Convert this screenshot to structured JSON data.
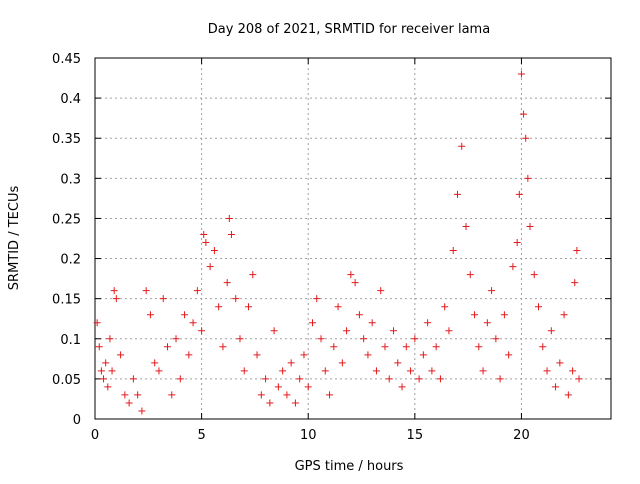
{
  "chart_data": {
    "type": "scatter",
    "title": "Day 208 of 2021, SRMTID for receiver lama",
    "xlabel": "GPS time / hours",
    "ylabel": "SRMTID / TECUs",
    "xlim": [
      0,
      24.2
    ],
    "ylim": [
      0,
      0.45
    ],
    "x_ticks": [
      0,
      5,
      10,
      15,
      20
    ],
    "y_ticks": [
      0,
      0.05,
      0.1,
      0.15,
      0.2,
      0.25,
      0.3,
      0.35,
      0.4,
      0.45
    ],
    "x_tick_labels": [
      "0",
      "5",
      "10",
      "15",
      "20"
    ],
    "y_tick_labels": [
      "0",
      "0.05",
      "0.1",
      "0.15",
      "0.2",
      "0.25",
      "0.3",
      "0.35",
      "0.4",
      "0.45"
    ],
    "grid": true,
    "marker": "+",
    "series": [
      {
        "name": "SRMTID",
        "color": "#e41a1c",
        "points": [
          [
            0.1,
            0.12
          ],
          [
            0.2,
            0.09
          ],
          [
            0.3,
            0.06
          ],
          [
            0.4,
            0.05
          ],
          [
            0.5,
            0.07
          ],
          [
            0.6,
            0.04
          ],
          [
            0.7,
            0.1
          ],
          [
            0.8,
            0.06
          ],
          [
            0.9,
            0.16
          ],
          [
            1.0,
            0.15
          ],
          [
            1.2,
            0.08
          ],
          [
            1.4,
            0.03
          ],
          [
            1.6,
            0.02
          ],
          [
            1.8,
            0.05
          ],
          [
            2.0,
            0.03
          ],
          [
            2.2,
            0.01
          ],
          [
            2.4,
            0.16
          ],
          [
            2.6,
            0.13
          ],
          [
            2.8,
            0.07
          ],
          [
            3.0,
            0.06
          ],
          [
            3.2,
            0.15
          ],
          [
            3.4,
            0.09
          ],
          [
            3.6,
            0.03
          ],
          [
            3.8,
            0.1
          ],
          [
            4.0,
            0.05
          ],
          [
            4.2,
            0.13
          ],
          [
            4.4,
            0.08
          ],
          [
            4.6,
            0.12
          ],
          [
            4.8,
            0.16
          ],
          [
            5.0,
            0.11
          ],
          [
            5.1,
            0.23
          ],
          [
            5.2,
            0.22
          ],
          [
            5.4,
            0.19
          ],
          [
            5.6,
            0.21
          ],
          [
            5.8,
            0.14
          ],
          [
            6.0,
            0.09
          ],
          [
            6.2,
            0.17
          ],
          [
            6.3,
            0.25
          ],
          [
            6.4,
            0.23
          ],
          [
            6.6,
            0.15
          ],
          [
            6.8,
            0.1
          ],
          [
            7.0,
            0.06
          ],
          [
            7.2,
            0.14
          ],
          [
            7.4,
            0.18
          ],
          [
            7.6,
            0.08
          ],
          [
            7.8,
            0.03
          ],
          [
            8.0,
            0.05
          ],
          [
            8.2,
            0.02
          ],
          [
            8.4,
            0.11
          ],
          [
            8.6,
            0.04
          ],
          [
            8.8,
            0.06
          ],
          [
            9.0,
            0.03
          ],
          [
            9.2,
            0.07
          ],
          [
            9.4,
            0.02
          ],
          [
            9.6,
            0.05
          ],
          [
            9.8,
            0.08
          ],
          [
            10.0,
            0.04
          ],
          [
            10.2,
            0.12
          ],
          [
            10.4,
            0.15
          ],
          [
            10.6,
            0.1
          ],
          [
            10.8,
            0.06
          ],
          [
            11.0,
            0.03
          ],
          [
            11.2,
            0.09
          ],
          [
            11.4,
            0.14
          ],
          [
            11.6,
            0.07
          ],
          [
            11.8,
            0.11
          ],
          [
            12.0,
            0.18
          ],
          [
            12.2,
            0.17
          ],
          [
            12.4,
            0.13
          ],
          [
            12.6,
            0.1
          ],
          [
            12.8,
            0.08
          ],
          [
            13.0,
            0.12
          ],
          [
            13.2,
            0.06
          ],
          [
            13.4,
            0.16
          ],
          [
            13.6,
            0.09
          ],
          [
            13.8,
            0.05
          ],
          [
            14.0,
            0.11
          ],
          [
            14.2,
            0.07
          ],
          [
            14.4,
            0.04
          ],
          [
            14.6,
            0.09
          ],
          [
            14.8,
            0.06
          ],
          [
            15.0,
            0.1
          ],
          [
            15.2,
            0.05
          ],
          [
            15.4,
            0.08
          ],
          [
            15.6,
            0.12
          ],
          [
            15.8,
            0.06
          ],
          [
            16.0,
            0.09
          ],
          [
            16.2,
            0.05
          ],
          [
            16.4,
            0.14
          ],
          [
            16.6,
            0.11
          ],
          [
            16.8,
            0.21
          ],
          [
            17.0,
            0.28
          ],
          [
            17.2,
            0.34
          ],
          [
            17.4,
            0.24
          ],
          [
            17.6,
            0.18
          ],
          [
            17.8,
            0.13
          ],
          [
            18.0,
            0.09
          ],
          [
            18.2,
            0.06
          ],
          [
            18.4,
            0.12
          ],
          [
            18.6,
            0.16
          ],
          [
            18.8,
            0.1
          ],
          [
            19.0,
            0.05
          ],
          [
            19.2,
            0.13
          ],
          [
            19.4,
            0.08
          ],
          [
            19.6,
            0.19
          ],
          [
            19.8,
            0.22
          ],
          [
            19.9,
            0.28
          ],
          [
            20.0,
            0.43
          ],
          [
            20.1,
            0.38
          ],
          [
            20.2,
            0.35
          ],
          [
            20.3,
            0.3
          ],
          [
            20.4,
            0.24
          ],
          [
            20.6,
            0.18
          ],
          [
            20.8,
            0.14
          ],
          [
            21.0,
            0.09
          ],
          [
            21.2,
            0.06
          ],
          [
            21.4,
            0.11
          ],
          [
            21.6,
            0.04
          ],
          [
            21.8,
            0.07
          ],
          [
            22.0,
            0.13
          ],
          [
            22.2,
            0.03
          ],
          [
            22.4,
            0.06
          ],
          [
            22.5,
            0.17
          ],
          [
            22.6,
            0.21
          ],
          [
            22.7,
            0.05
          ]
        ]
      }
    ]
  }
}
